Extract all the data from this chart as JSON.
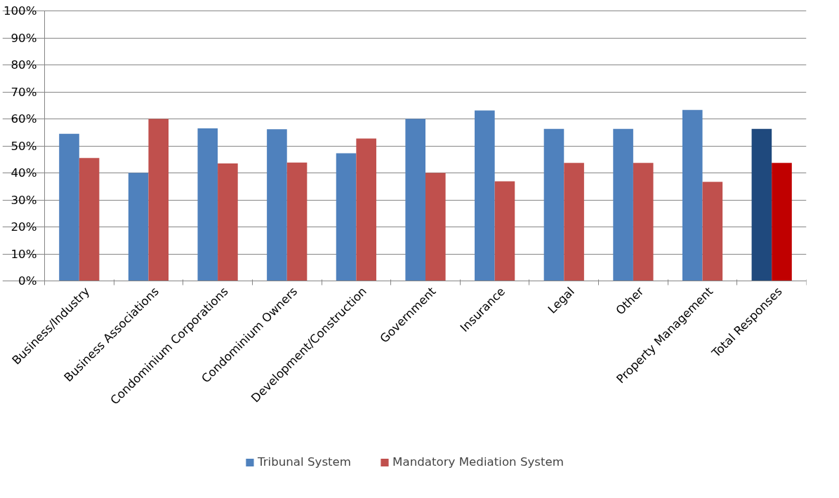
{
  "chart_data": {
    "type": "bar",
    "categories": [
      "Business/Industry",
      "Business Associations",
      "Condominium Corporations",
      "Condominium Owners",
      "Development/Construction",
      "Government",
      "Insurance",
      "Legal",
      "Other",
      "Property Management",
      "Total Responses"
    ],
    "series": [
      {
        "name": "Tribunal System",
        "color": "#4f81bd",
        "colors": [
          "#4f81bd",
          "#4f81bd",
          "#4f81bd",
          "#4f81bd",
          "#4f81bd",
          "#4f81bd",
          "#4f81bd",
          "#4f81bd",
          "#4f81bd",
          "#4f81bd",
          "#1f497d"
        ],
        "values": [
          54.5,
          40,
          56.5,
          56.2,
          47.3,
          60,
          63.1,
          56.3,
          56.3,
          63.3,
          56.3
        ]
      },
      {
        "name": "Mandatory Mediation System",
        "color": "#c0504d",
        "colors": [
          "#c0504d",
          "#c0504d",
          "#c0504d",
          "#c0504d",
          "#c0504d",
          "#c0504d",
          "#c0504d",
          "#c0504d",
          "#c0504d",
          "#c0504d",
          "#c00000"
        ],
        "values": [
          45.5,
          60,
          43.5,
          43.8,
          52.7,
          40,
          36.9,
          43.7,
          43.7,
          36.7,
          43.7
        ]
      }
    ],
    "ylim": [
      0,
      100
    ],
    "yticks": [
      {
        "value": 0,
        "label": "0%"
      },
      {
        "value": 10,
        "label": "10%"
      },
      {
        "value": 20,
        "label": "20%"
      },
      {
        "value": 30,
        "label": "30%"
      },
      {
        "value": 40,
        "label": "40%"
      },
      {
        "value": 50,
        "label": "50%"
      },
      {
        "value": 60,
        "label": "60%"
      },
      {
        "value": 70,
        "label": "70%"
      },
      {
        "value": 80,
        "label": "80%"
      },
      {
        "value": 90,
        "label": "90%"
      },
      {
        "value": 100,
        "label": "100%"
      }
    ],
    "grid": "y",
    "legend": "bottom"
  }
}
